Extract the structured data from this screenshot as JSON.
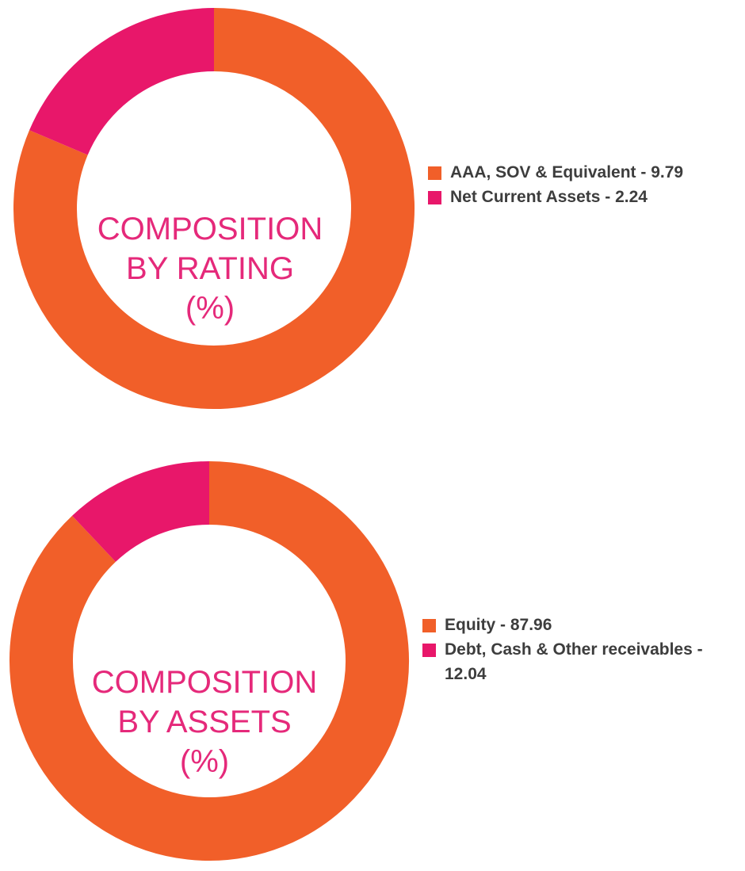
{
  "chart_data": [
    {
      "type": "pie",
      "donut": true,
      "center_title": [
        "COMPOSITION",
        "BY RATING",
        "(%)"
      ],
      "categories": [
        "AAA, SOV & Equivalent",
        "Net Current Assets"
      ],
      "values": [
        9.79,
        2.24
      ],
      "legend": [
        "AAA, SOV & Equivalent - 9.79",
        "Net Current Assets - 2.24"
      ],
      "colors": [
        "#f15f29",
        "#e8176a"
      ],
      "legend_position": "right"
    },
    {
      "type": "pie",
      "donut": true,
      "center_title": [
        "COMPOSITION",
        "BY ASSETS",
        "(%)"
      ],
      "categories": [
        "Equity",
        "Debt, Cash & Other receivables"
      ],
      "values": [
        87.96,
        12.04
      ],
      "legend": [
        "Equity - 87.96",
        "Debt, Cash & Other receivables - 12.04"
      ],
      "colors": [
        "#f15f29",
        "#e8176a"
      ],
      "legend_position": "right"
    }
  ]
}
